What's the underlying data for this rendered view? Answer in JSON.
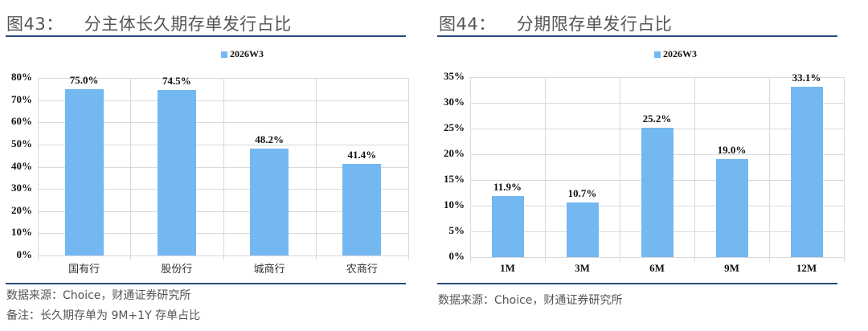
{
  "colors": {
    "bar": "#74b8f2",
    "rule": "#2d4a7a",
    "grid": "#d9d9d9",
    "title": "#555555"
  },
  "left": {
    "figure_number": "图43：",
    "title": "分主体长久期存单发行占比",
    "legend": "2026W3",
    "yticks": [
      "80%",
      "70%",
      "60%",
      "50%",
      "40%",
      "30%",
      "20%",
      "10%",
      "0%"
    ],
    "categories": [
      "国有行",
      "股份行",
      "城商行",
      "农商行"
    ],
    "labels": [
      "75.0%",
      "74.5%",
      "48.2%",
      "41.4%"
    ],
    "source": "数据来源：Choice，财通证券研究所",
    "note": "备注：长久期存单为 9M+1Y 存单占比"
  },
  "right": {
    "figure_number": "图44：",
    "title": "分期限存单发行占比",
    "legend": "2026W3",
    "yticks": [
      "35%",
      "30%",
      "25%",
      "20%",
      "15%",
      "10%",
      "5%",
      "0%"
    ],
    "categories": [
      "1M",
      "3M",
      "6M",
      "9M",
      "12M"
    ],
    "labels": [
      "11.9%",
      "10.7%",
      "25.2%",
      "19.0%",
      "33.1%"
    ],
    "source": "数据来源：Choice，财通证券研究所"
  },
  "chart_data": [
    {
      "type": "bar",
      "title": "图43： 分主体长久期存单发行占比",
      "categories": [
        "国有行",
        "股份行",
        "城商行",
        "农商行"
      ],
      "series": [
        {
          "name": "2026W3",
          "values": [
            75.0,
            74.5,
            48.2,
            41.4
          ]
        }
      ],
      "xlabel": "",
      "ylabel": "",
      "ylim": [
        0,
        80
      ],
      "yticks": [
        "0%",
        "10%",
        "20%",
        "30%",
        "40%",
        "50%",
        "60%",
        "70%",
        "80%"
      ],
      "grid": true,
      "legend_position": "top",
      "annotations": [
        "数据来源：Choice，财通证券研究所",
        "备注：长久期存单为 9M+1Y 存单占比"
      ]
    },
    {
      "type": "bar",
      "title": "图44： 分期限存单发行占比",
      "categories": [
        "1M",
        "3M",
        "6M",
        "9M",
        "12M"
      ],
      "series": [
        {
          "name": "2026W3",
          "values": [
            11.9,
            10.7,
            25.2,
            19.0,
            33.1
          ]
        }
      ],
      "xlabel": "",
      "ylabel": "",
      "ylim": [
        0,
        35
      ],
      "yticks": [
        "0%",
        "5%",
        "10%",
        "15%",
        "20%",
        "25%",
        "30%",
        "35%"
      ],
      "grid": true,
      "legend_position": "top",
      "annotations": [
        "数据来源：Choice，财通证券研究所"
      ]
    }
  ]
}
